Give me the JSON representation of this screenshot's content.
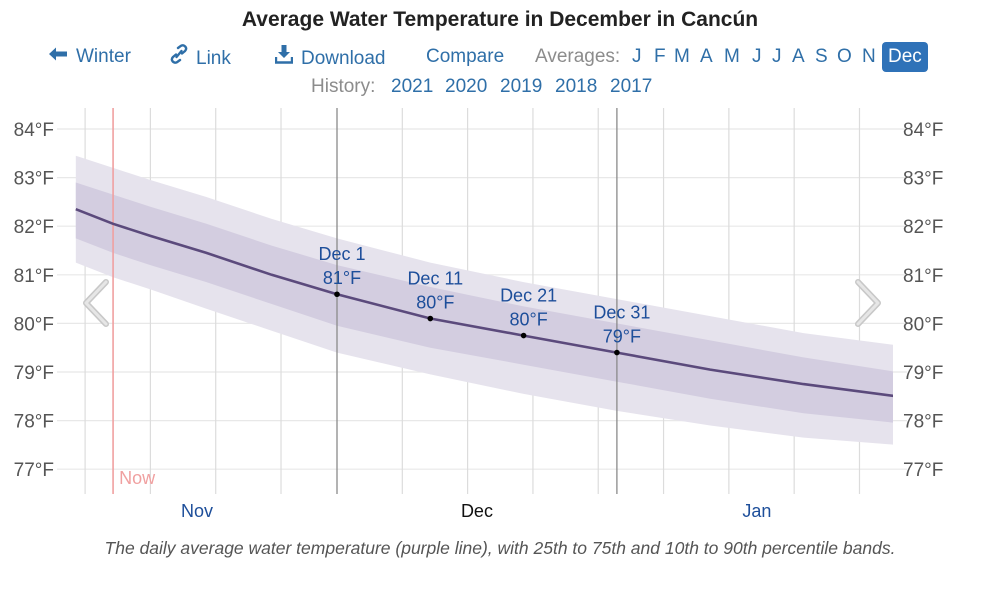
{
  "header": {
    "title": "Average Water Temperature in December in Cancún"
  },
  "nav": {
    "back": {
      "label": "Winter",
      "icon": "arrow-left-icon"
    },
    "link": {
      "label": "Link",
      "icon": "link-icon"
    },
    "download": {
      "label": "Download",
      "icon": "download-icon"
    },
    "compare": {
      "label": "Compare"
    },
    "averages_label": "Averages:",
    "months": [
      "J",
      "F",
      "M",
      "A",
      "M",
      "J",
      "J",
      "A",
      "S",
      "O",
      "N",
      "Dec"
    ],
    "active_month": "Dec"
  },
  "history": {
    "label": "History:",
    "years": [
      "2021",
      "2020",
      "2019",
      "2018",
      "2017"
    ]
  },
  "caption": "The daily average water temperature (purple line), with 25th to 75th and 10th to 90th percentile bands.",
  "colors": {
    "line": "#5b4a7c",
    "band_25_75": "#d3cde0",
    "band_10_90": "#e6e3ed",
    "now_line": "#f0a0a0",
    "link": "#2f6fa8",
    "active_month_bg": "#2f72b8",
    "annotation": "#1d4e9a"
  },
  "chart_data": {
    "type": "area",
    "title": "Average Water Temperature in December in Cancún",
    "xlabel": "",
    "ylabel": "",
    "x_unit": "day offset from Dec 1",
    "x_range": [
      -28,
      60
    ],
    "ylim": [
      76.4,
      84.3
    ],
    "yticks": [
      84,
      83,
      82,
      81,
      80,
      79,
      78,
      77
    ],
    "ytick_labels": [
      "84°F",
      "83°F",
      "82°F",
      "81°F",
      "80°F",
      "79°F",
      "78°F",
      "77°F"
    ],
    "month_labels": [
      {
        "label": "Nov",
        "day": -15,
        "highlight": false
      },
      {
        "label": "Dec",
        "day": 15,
        "highlight": true
      },
      {
        "label": "Jan",
        "day": 45,
        "highlight": false
      }
    ],
    "gridline_days": [
      -27,
      -20,
      -13,
      -6,
      7,
      14,
      21,
      28,
      35,
      42,
      49,
      56
    ],
    "month_boundary_days": [
      0,
      30
    ],
    "now": {
      "label": "Now",
      "day": -24
    },
    "x": [
      -28,
      -24,
      -20,
      -14,
      -7,
      0,
      10,
      20,
      30,
      40,
      50,
      60
    ],
    "series": [
      {
        "name": "Average",
        "values": [
          82.35,
          82.05,
          81.8,
          81.45,
          81.0,
          80.6,
          80.1,
          79.75,
          79.4,
          79.05,
          78.75,
          78.5
        ]
      },
      {
        "name": "25th percentile",
        "values": [
          81.75,
          81.45,
          81.2,
          80.85,
          80.4,
          79.95,
          79.5,
          79.15,
          78.8,
          78.45,
          78.15,
          77.95
        ]
      },
      {
        "name": "75th percentile",
        "values": [
          82.9,
          82.65,
          82.4,
          82.05,
          81.6,
          81.2,
          80.75,
          80.35,
          80.0,
          79.65,
          79.3,
          79.0
        ]
      },
      {
        "name": "10th percentile",
        "values": [
          81.25,
          80.95,
          80.7,
          80.3,
          79.85,
          79.4,
          78.95,
          78.55,
          78.2,
          77.9,
          77.65,
          77.5
        ]
      },
      {
        "name": "90th percentile",
        "values": [
          83.45,
          83.2,
          82.95,
          82.6,
          82.15,
          81.75,
          81.25,
          80.85,
          80.5,
          80.15,
          79.8,
          79.55
        ]
      }
    ],
    "annotations": [
      {
        "date": "Dec 1",
        "value": "81°F",
        "day": 0,
        "y": 80.6
      },
      {
        "date": "Dec 11",
        "value": "80°F",
        "day": 10,
        "y": 80.1
      },
      {
        "date": "Dec 21",
        "value": "80°F",
        "day": 20,
        "y": 79.75
      },
      {
        "date": "Dec 31",
        "value": "79°F",
        "day": 30,
        "y": 79.4
      }
    ],
    "legend": "none",
    "grid": true
  }
}
